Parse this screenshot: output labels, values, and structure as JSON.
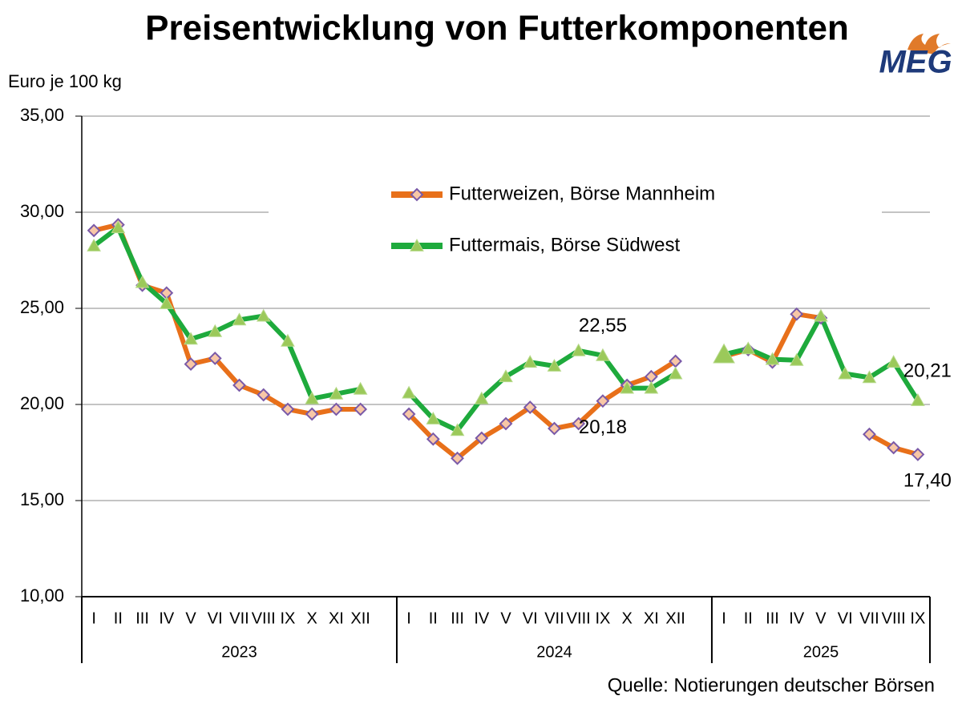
{
  "chart_data": {
    "type": "line",
    "title": "Preisentwicklung von Futterkomponenten",
    "y_label": "Euro je 100 kg",
    "source": "Quelle: Notierungen deutscher Börsen",
    "logo": "MEG",
    "categories": [
      "I",
      "II",
      "III",
      "IV",
      "V",
      "VI",
      "VII",
      "VIII",
      "IX",
      "X",
      "XI",
      "XII",
      null,
      "I",
      "II",
      "III",
      "IV",
      "V",
      "VI",
      "VII",
      "VIII",
      "IX",
      "X",
      "XI",
      "XII",
      null,
      "I",
      "II",
      "III",
      "IV",
      "V",
      "VI",
      "VII",
      "VIII",
      "IX"
    ],
    "groups": [
      "2023",
      "2024",
      "2025"
    ],
    "series": [
      {
        "name": "Futterweizen, Börse Mannheim",
        "color": "#e8701a",
        "values": [
          29.05,
          29.35,
          26.2,
          25.8,
          22.1,
          22.4,
          21.0,
          20.5,
          19.75,
          19.5,
          19.75,
          19.75,
          null,
          19.5,
          18.2,
          17.2,
          18.25,
          19.0,
          19.85,
          18.75,
          19.0,
          20.18,
          21.0,
          21.45,
          22.25,
          null,
          22.5,
          22.85,
          22.2,
          24.7,
          24.5,
          null,
          18.45,
          17.75,
          17.4
        ],
        "value_labels": [
          null,
          null,
          null,
          null,
          null,
          null,
          null,
          null,
          null,
          null,
          null,
          null,
          null,
          null,
          null,
          null,
          null,
          null,
          null,
          null,
          null,
          "20,18",
          null,
          null,
          null,
          null,
          null,
          null,
          null,
          null,
          null,
          null,
          null,
          null,
          "17,40"
        ]
      },
      {
        "name": "Futtermais, Börse Südwest",
        "color": "#1eaa3c",
        "values": [
          28.25,
          29.2,
          26.35,
          25.25,
          23.4,
          23.8,
          24.4,
          24.6,
          23.3,
          20.3,
          20.55,
          20.8,
          null,
          20.6,
          19.25,
          18.65,
          20.3,
          21.45,
          22.2,
          22.0,
          22.8,
          22.55,
          20.85,
          20.85,
          21.6,
          null,
          22.6,
          22.9,
          22.35,
          22.3,
          24.6,
          21.6,
          21.4,
          22.2,
          20.21
        ],
        "value_labels": [
          null,
          null,
          null,
          null,
          null,
          null,
          null,
          null,
          null,
          null,
          null,
          null,
          null,
          null,
          null,
          null,
          null,
          null,
          null,
          null,
          null,
          "22,55",
          null,
          null,
          null,
          null,
          null,
          null,
          null,
          null,
          null,
          null,
          null,
          null,
          "20,21"
        ]
      }
    ],
    "ylim": [
      10,
      35
    ],
    "yticks": [
      {
        "value": 10,
        "label": "10,00"
      },
      {
        "value": 15,
        "label": "15,00"
      },
      {
        "value": 20,
        "label": "20,00"
      },
      {
        "value": 25,
        "label": "25,00"
      },
      {
        "value": 30,
        "label": "30,00"
      },
      {
        "value": 35,
        "label": "35,00"
      }
    ],
    "grid": true
  }
}
